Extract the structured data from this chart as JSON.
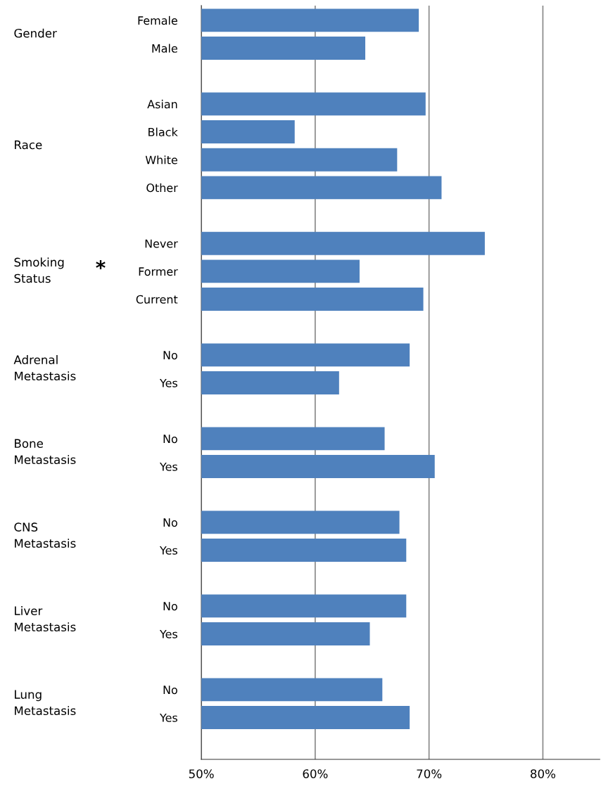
{
  "chart_data": {
    "type": "bar",
    "orientation": "horizontal",
    "categories": [
      "Female",
      "Male",
      null,
      "Asian",
      "Black",
      "White",
      "Other",
      null,
      "Never",
      "Former",
      "Current",
      null,
      "No",
      "Yes",
      null,
      "No",
      "Yes",
      null,
      "No",
      "Yes",
      null,
      "No",
      "Yes",
      null,
      "No",
      "Yes"
    ],
    "values": [
      69.1,
      64.4,
      null,
      69.7,
      58.2,
      67.2,
      71.1,
      null,
      74.9,
      63.9,
      69.5,
      null,
      68.3,
      62.1,
      null,
      66.1,
      70.5,
      null,
      67.4,
      68.0,
      null,
      68.0,
      64.8,
      null,
      65.9,
      68.3
    ],
    "color": "#4f81bd",
    "xlim": [
      50,
      85
    ],
    "xticks": [
      {
        "value": 50,
        "label": "50%"
      },
      {
        "value": 60,
        "label": "60%"
      },
      {
        "value": 70,
        "label": "70%"
      },
      {
        "value": 80,
        "label": "80%"
      }
    ],
    "grid": "x",
    "annotations": [
      "Gender",
      "Race",
      "Smoking\nStatus",
      "Adrenal\nMetastasis",
      "Bone\nMetastasis",
      "CNS\nMetastasis",
      "Liver\nMetastasis",
      "Lung\nMetastasis",
      "*"
    ]
  }
}
